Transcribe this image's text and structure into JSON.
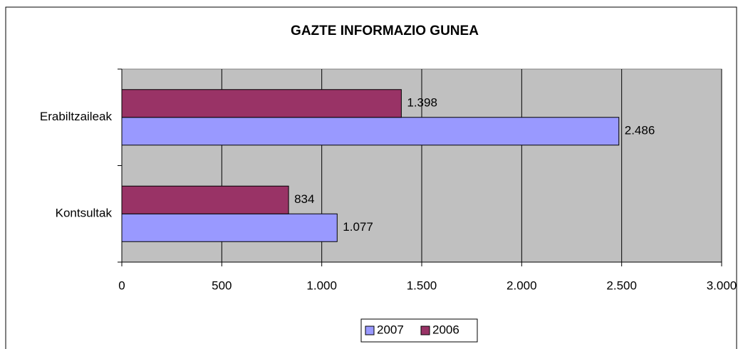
{
  "chart_data": {
    "type": "hbar",
    "title": "GAZTE INFORMAZIO GUNEA",
    "categories": [
      "Erabiltzaileak",
      "Kontsultak"
    ],
    "series": [
      {
        "name": "2007",
        "color": "#9999ff",
        "values": [
          2486,
          1077
        ],
        "value_labels": [
          "2.486",
          "1.077"
        ]
      },
      {
        "name": "2006",
        "color": "#993366",
        "values": [
          1398,
          834
        ],
        "value_labels": [
          "1.398",
          "834"
        ]
      }
    ],
    "xlim": [
      0,
      3000
    ],
    "xticks": [
      0,
      500,
      {
        "value": 1000,
        "label": "1.000"
      },
      {
        "value": 1500,
        "label": "1.500"
      },
      {
        "value": 2000,
        "label": "2.000"
      },
      {
        "value": 2500,
        "label": "2.500"
      },
      {
        "value": 3000,
        "label": "3.000"
      }
    ],
    "grid": true,
    "legend": "bottom"
  }
}
